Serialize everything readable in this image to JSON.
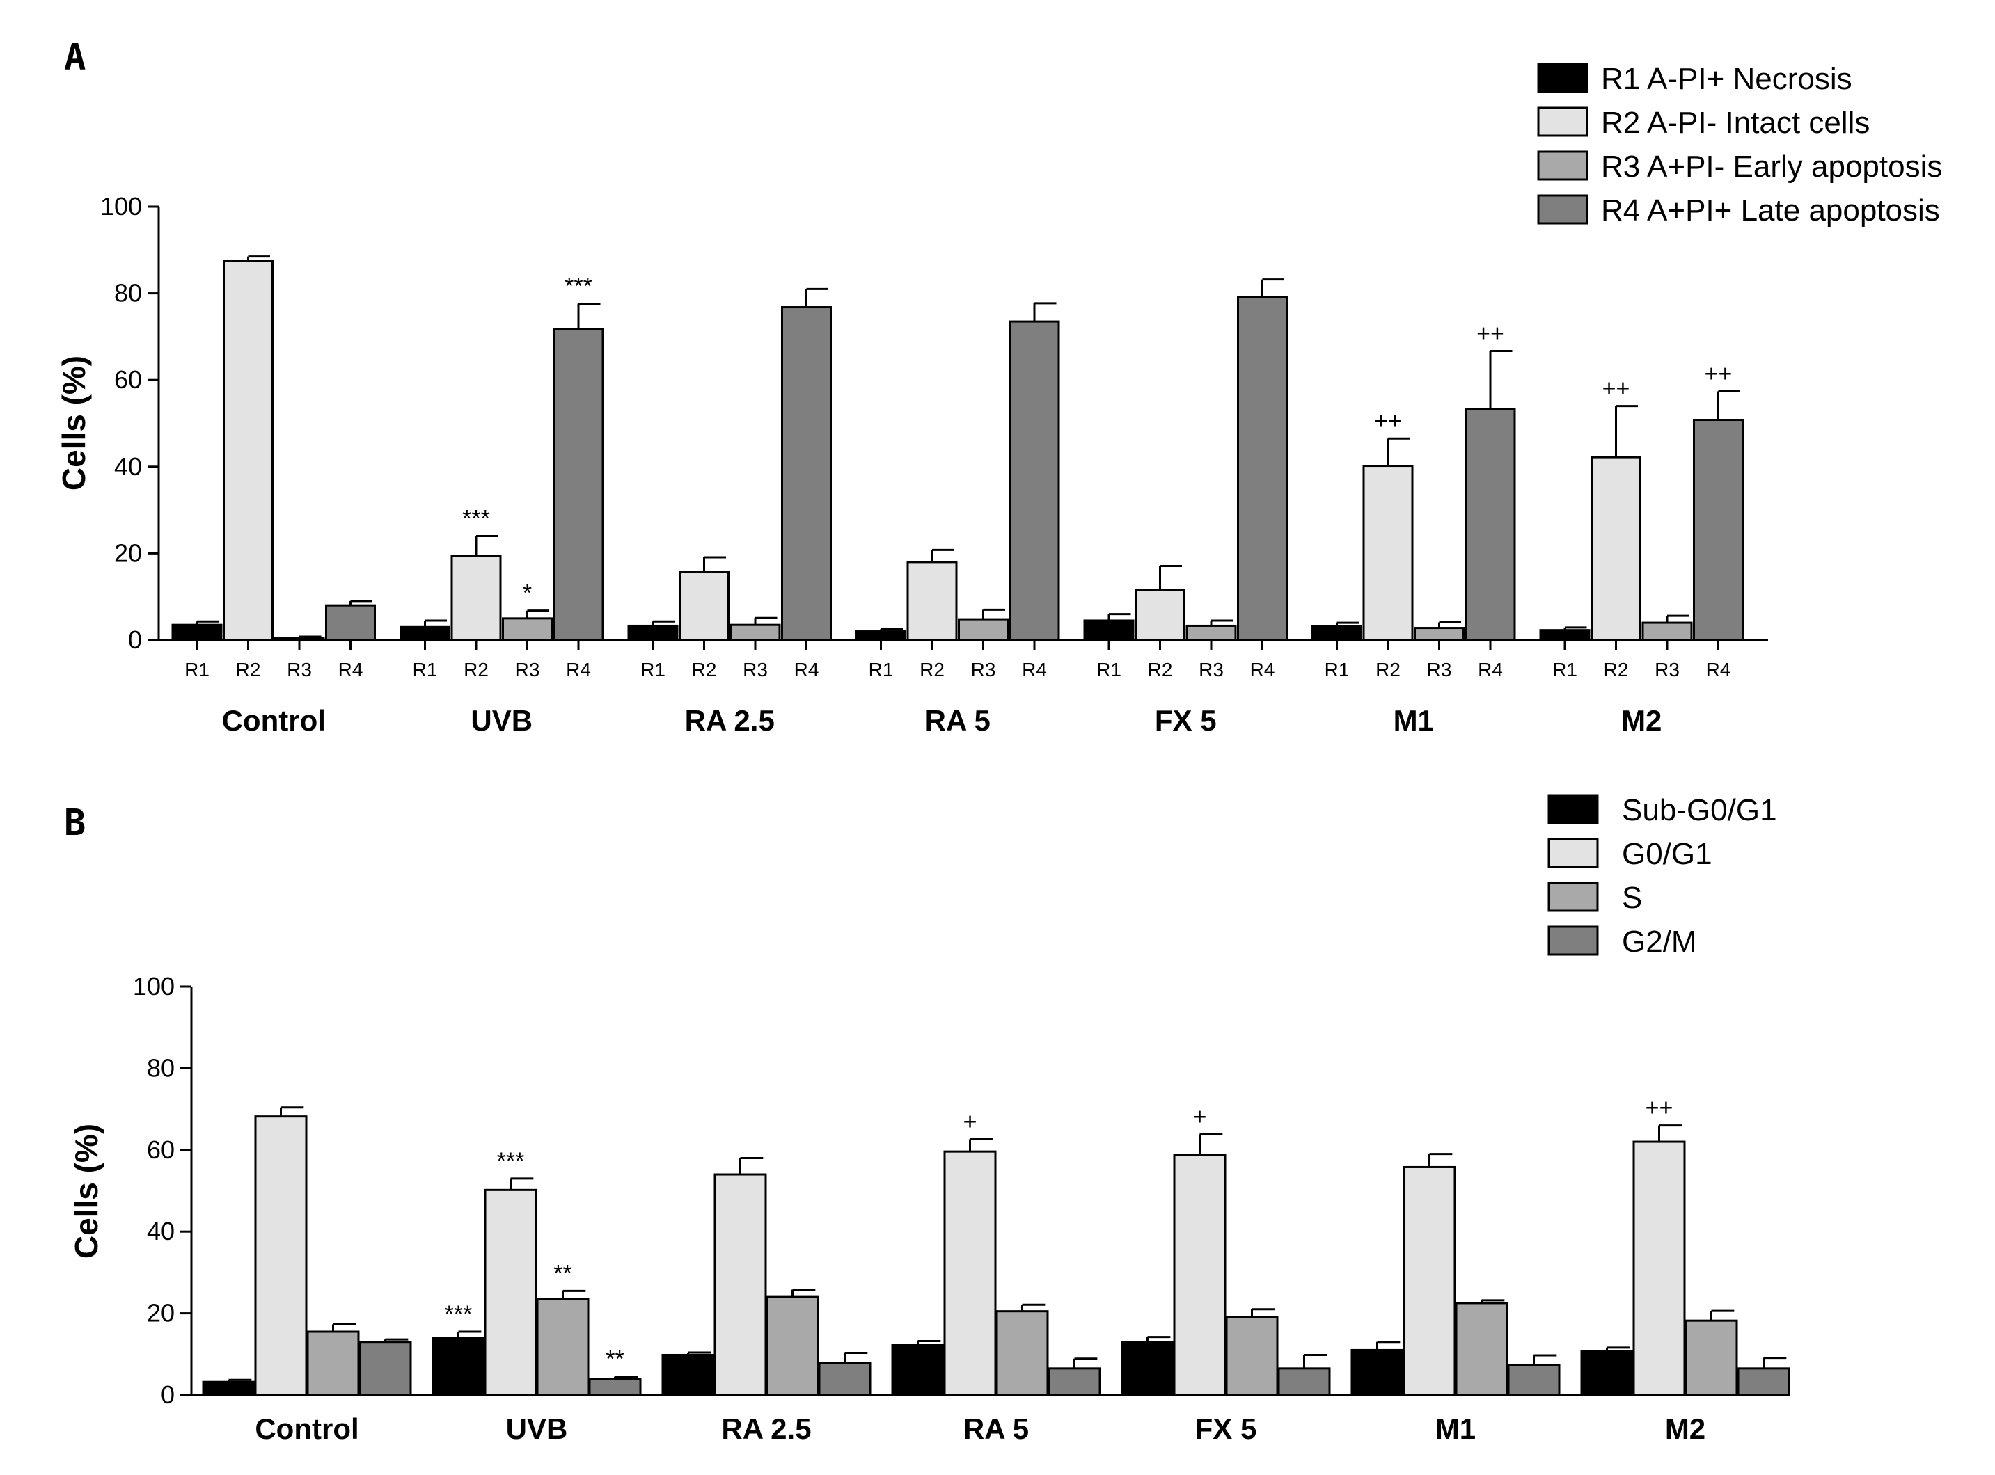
{
  "chart_data": [
    {
      "panel": "A",
      "type": "bar",
      "ylabel": "Cells (%)",
      "ylim": [
        0,
        100
      ],
      "yticks": [
        0,
        20,
        40,
        60,
        80,
        100
      ],
      "groups": [
        "Control",
        "UVB",
        "RA 2.5",
        "RA 5",
        "FX 5",
        "M1",
        "M2"
      ],
      "sub_labels": [
        "R1",
        "R2",
        "R3",
        "R4"
      ],
      "series": [
        {
          "name": "R1 A-PI+ Necrosis",
          "color": "#000000",
          "values": [
            3.5,
            3.0,
            3.3,
            2.0,
            4.5,
            3.2,
            2.3
          ],
          "errors": [
            0.8,
            1.5,
            1.0,
            0.5,
            1.5,
            0.8,
            0.6
          ],
          "annotations": [
            "",
            "",
            "",
            "",
            "",
            "",
            ""
          ]
        },
        {
          "name": "R2 A-PI- Intact cells",
          "color": "#e3e3e3",
          "values": [
            87.5,
            19.5,
            15.8,
            18.0,
            11.5,
            40.2,
            42.2
          ],
          "errors": [
            1.0,
            4.5,
            3.3,
            2.8,
            5.6,
            6.3,
            11.8
          ],
          "annotations": [
            "",
            "***",
            "",
            "",
            "",
            "++",
            "++"
          ]
        },
        {
          "name": "R3 A+PI- Early apoptosis",
          "color": "#a9a9a9",
          "values": [
            0.5,
            5.0,
            3.5,
            4.8,
            3.3,
            2.8,
            4.0
          ],
          "errors": [
            0.3,
            1.8,
            1.6,
            2.2,
            1.2,
            1.3,
            1.6
          ],
          "annotations": [
            "",
            "*",
            "",
            "",
            "",
            "",
            ""
          ]
        },
        {
          "name": "R4 A+PI+ Late apoptosis",
          "color": "#7f7f7f",
          "values": [
            8.0,
            71.8,
            76.8,
            73.5,
            79.2,
            53.3,
            50.8
          ],
          "errors": [
            1.0,
            5.8,
            4.2,
            4.2,
            4.0,
            13.4,
            6.6
          ],
          "annotations": [
            "",
            "***",
            "",
            "",
            "",
            "++",
            "++"
          ]
        }
      ]
    },
    {
      "panel": "B",
      "type": "bar",
      "ylabel": "Cells (%)",
      "ylim": [
        0,
        100
      ],
      "yticks": [
        0,
        20,
        40,
        60,
        80,
        100
      ],
      "groups": [
        "Control",
        "UVB",
        "RA 2.5",
        "RA 5",
        "FX 5",
        "M1",
        "M2"
      ],
      "series": [
        {
          "name": "Sub-G0/G1",
          "color": "#000000",
          "values": [
            3.2,
            14.0,
            9.8,
            12.2,
            13.0,
            11.0,
            10.8
          ],
          "errors": [
            0.5,
            1.5,
            0.6,
            1.0,
            1.2,
            2.0,
            0.8
          ],
          "annotations": [
            "",
            "***",
            "",
            "",
            "",
            "",
            ""
          ]
        },
        {
          "name": "G0/G1",
          "color": "#e3e3e3",
          "values": [
            68.2,
            50.2,
            54.0,
            59.6,
            58.8,
            55.8,
            62.0
          ],
          "errors": [
            2.2,
            2.8,
            4.0,
            3.0,
            5.0,
            3.2,
            4.0
          ],
          "annotations": [
            "",
            "***",
            "",
            "+",
            "+",
            "",
            "++"
          ]
        },
        {
          "name": "S",
          "color": "#a9a9a9",
          "values": [
            15.5,
            23.5,
            24.0,
            20.5,
            19.0,
            22.5,
            18.2
          ],
          "errors": [
            1.8,
            2.0,
            1.8,
            1.6,
            2.0,
            0.7,
            2.4
          ],
          "annotations": [
            "",
            "**",
            "",
            "",
            "",
            "",
            ""
          ]
        },
        {
          "name": "G2/M",
          "color": "#7f7f7f",
          "values": [
            13.0,
            4.0,
            7.8,
            6.5,
            6.5,
            7.3,
            6.5
          ],
          "errors": [
            0.6,
            0.5,
            2.5,
            2.4,
            3.3,
            2.4,
            2.6
          ],
          "annotations": [
            "",
            "**",
            "",
            "",
            "",
            "",
            ""
          ]
        }
      ]
    }
  ]
}
